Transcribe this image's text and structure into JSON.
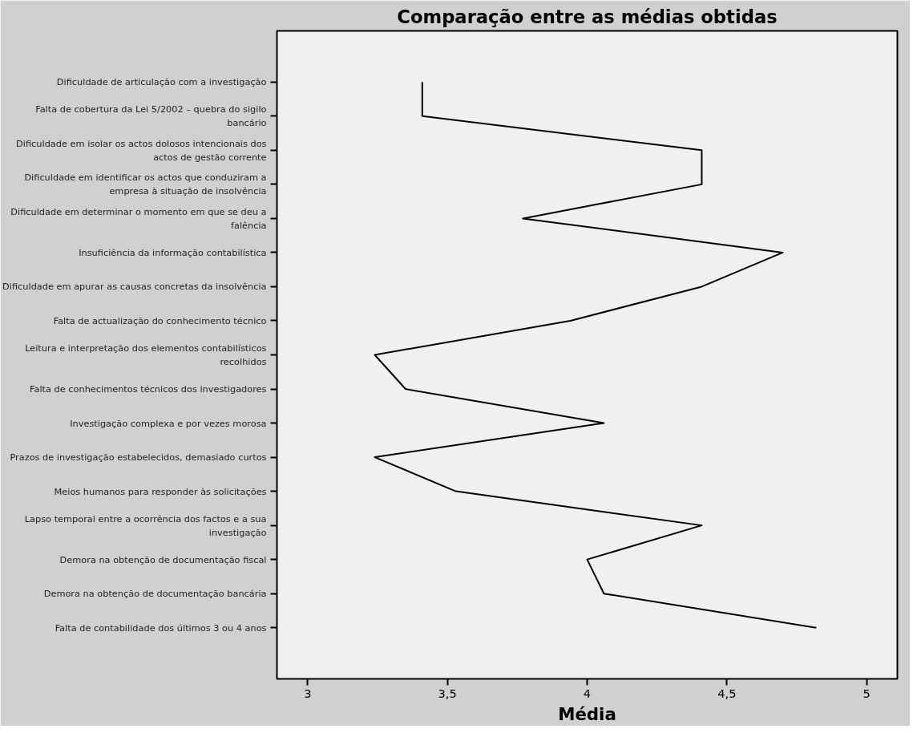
{
  "chart_data": {
    "type": "line",
    "orientation": "horizontal",
    "title": "Comparação entre as médias obtidas",
    "xlabel": "Média",
    "categories": [
      "Dificuldade de articulação com a investigação",
      "Falta de cobertura da Lei 5/2002 – quebra do sigilo bancário",
      "Dificuldade em isolar os actos dolosos intencionais dos actos de gestão corrente",
      "Dificuldade em identificar os actos que conduziram a empresa à situação de insolvência",
      "Dificuldade em determinar o momento em que se deu a falência",
      "Insuficiência da informação contabilística",
      "Dificuldade em apurar as causas concretas da insolvência",
      "Falta de actualização do conhecimento técnico",
      "Leitura e interpretação dos elementos contabilísticos recolhidos",
      "Falta de conhecimentos técnicos dos investigadores",
      "Investigação complexa e por vezes morosa",
      "Prazos de investigação estabelecidos, demasiado curtos",
      "Meios humanos para responder às solicitações",
      "Lapso temporal entre a ocorrência dos factos e a sua investigação",
      "Demora na obtenção de documentação fiscal",
      "Demora na obtenção de documentação bancária",
      "Falta de contabilidade dos últimos 3 ou 4 anos"
    ],
    "series": [
      {
        "color": "#000000",
        "values": [
          3.41,
          3.41,
          4.41,
          4.41,
          3.77,
          4.7,
          4.41,
          3.94,
          3.24,
          3.35,
          4.06,
          3.24,
          3.53,
          4.41,
          4.0,
          4.06,
          4.82
        ]
      }
    ],
    "xlim": [
      2.89,
      5.11
    ],
    "xticks": [
      3,
      {
        "value": 3.5,
        "label": "3,5"
      },
      4,
      {
        "value": 4.5,
        "label": "4,5"
      },
      5
    ],
    "grid": false,
    "marker": "none",
    "line_style": "solid"
  }
}
